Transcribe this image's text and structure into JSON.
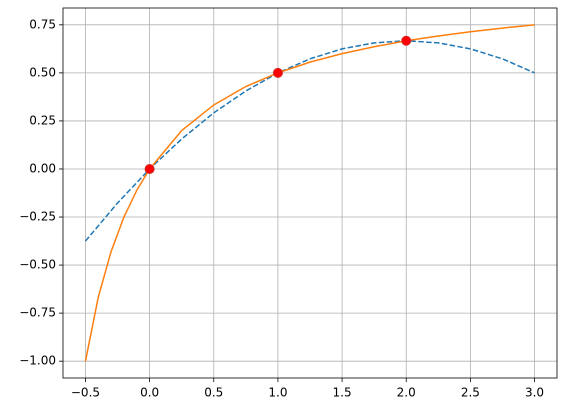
{
  "chart_data": {
    "type": "line",
    "xlim": [
      -0.675,
      3.175
    ],
    "ylim": [
      -1.0875,
      0.8375
    ],
    "xticks": [
      {
        "value": -0.5,
        "label": "−0.5"
      },
      {
        "value": 0,
        "label": "0.0"
      },
      {
        "value": 0.5,
        "label": "0.5"
      },
      {
        "value": 1,
        "label": "1.0"
      },
      {
        "value": 1.5,
        "label": "1.5"
      },
      {
        "value": 2,
        "label": "2.0"
      },
      {
        "value": 2.5,
        "label": "2.5"
      },
      {
        "value": 3,
        "label": "3.0"
      }
    ],
    "yticks": [
      {
        "value": -1,
        "label": "−1.00"
      },
      {
        "value": -0.75,
        "label": "−0.75"
      },
      {
        "value": -0.5,
        "label": "−0.50"
      },
      {
        "value": -0.25,
        "label": "−0.25"
      },
      {
        "value": 0,
        "label": "0.00"
      },
      {
        "value": 0.25,
        "label": "0.25"
      },
      {
        "value": 0.5,
        "label": "0.50"
      },
      {
        "value": 0.75,
        "label": "0.75"
      }
    ],
    "grid": true,
    "series": [
      {
        "type": "line",
        "dash": true,
        "color": "#1f77b4",
        "x": [
          -0.5,
          -0.25,
          0,
          0.25,
          0.5,
          0.75,
          1,
          1.25,
          1.5,
          1.75,
          2,
          2.25,
          2.5,
          2.75,
          3
        ],
        "values": [
          -0.375,
          -0.177,
          0,
          0.156,
          0.292,
          0.406,
          0.5,
          0.573,
          0.625,
          0.656,
          0.667,
          0.656,
          0.625,
          0.573,
          0.5
        ]
      },
      {
        "type": "line",
        "dash": false,
        "color": "#ff7f0e",
        "x": [
          -0.5,
          -0.4,
          -0.3,
          -0.2,
          -0.1,
          0,
          0.25,
          0.5,
          0.75,
          1,
          1.25,
          1.5,
          1.75,
          2,
          2.25,
          2.5,
          2.75,
          3
        ],
        "values": [
          -1,
          -0.667,
          -0.429,
          -0.25,
          -0.111,
          0,
          0.2,
          0.333,
          0.429,
          0.5,
          0.556,
          0.6,
          0.636,
          0.667,
          0.692,
          0.714,
          0.733,
          0.75
        ]
      },
      {
        "type": "scatter",
        "color": "red",
        "x": [
          0,
          1,
          2
        ],
        "values": [
          0,
          0.5,
          0.667
        ]
      }
    ]
  }
}
